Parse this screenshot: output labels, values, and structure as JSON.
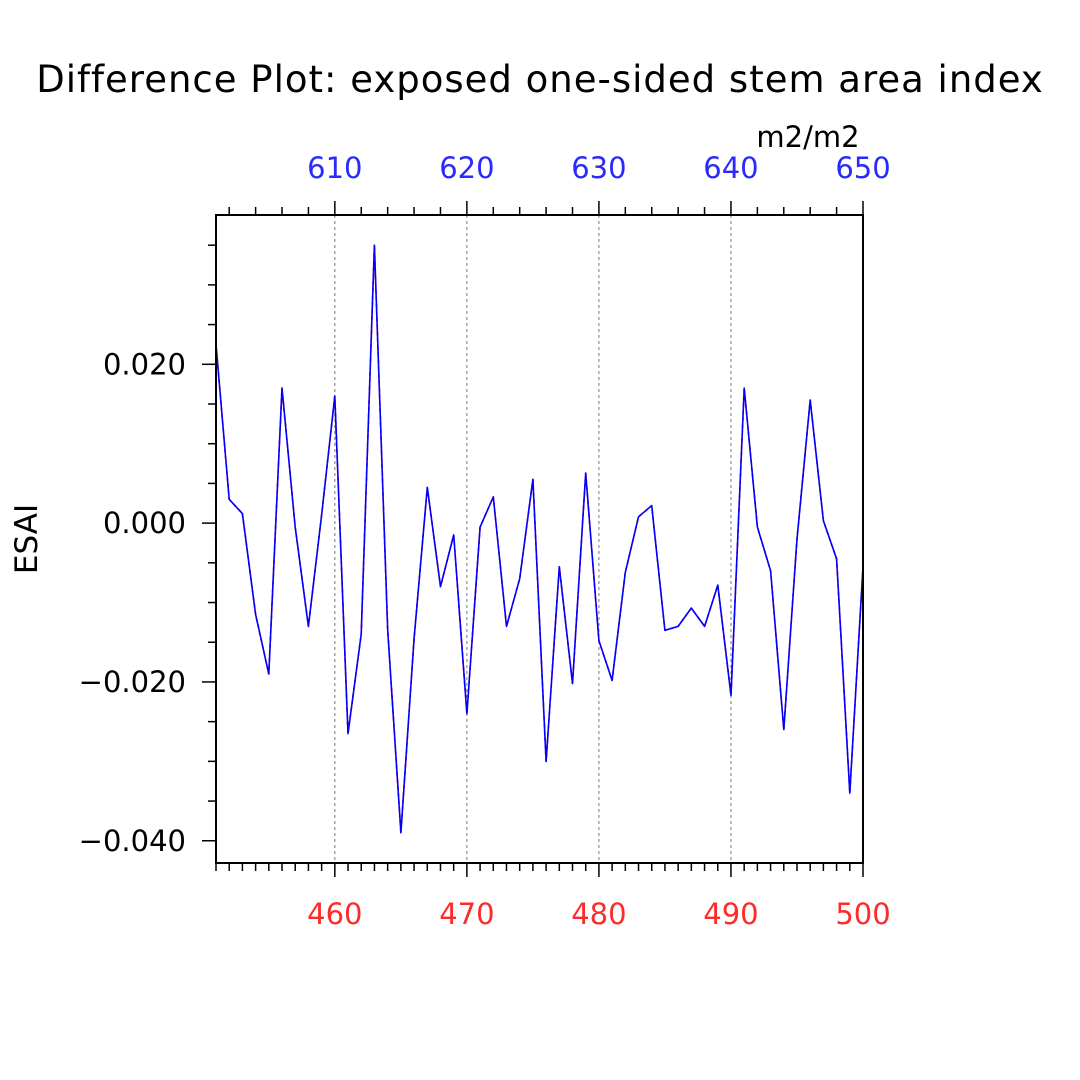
{
  "chart_data": {
    "type": "line",
    "title": "Difference Plot: exposed one-sided stem area index",
    "units": "m2/m2",
    "ylabel": "ESAI",
    "ylim": [
      -0.0428,
      0.0388
    ],
    "yticks": [
      "0.020",
      "0.000",
      "−0.020",
      "−0.040"
    ],
    "ytick_values": [
      0.02,
      0.0,
      -0.02,
      -0.04
    ],
    "y_minor_step": 0.005,
    "x_bottom": {
      "range": [
        451,
        500
      ],
      "ticks": [
        460,
        470,
        480,
        490,
        500
      ],
      "color": "#ff2a2a"
    },
    "x_top": {
      "range": [
        601,
        650
      ],
      "ticks": [
        610,
        620,
        630,
        640,
        650
      ],
      "color": "#2a2aff"
    },
    "grid": "vertical-dashed",
    "x": [
      451,
      452,
      453,
      454,
      455,
      456,
      457,
      458,
      459,
      460,
      461,
      462,
      463,
      464,
      465,
      466,
      467,
      468,
      469,
      470,
      471,
      472,
      473,
      474,
      475,
      476,
      477,
      478,
      479,
      480,
      481,
      482,
      483,
      484,
      485,
      486,
      487,
      488,
      489,
      490,
      491,
      492,
      493,
      494,
      495,
      496,
      497,
      498,
      499,
      500
    ],
    "series": [
      {
        "color": "#ff0000",
        "dash": "dashed",
        "values": [
          0.0225,
          0.003,
          0.0012,
          -0.0115,
          -0.019,
          0.017,
          -0.0005,
          -0.013,
          0.001,
          0.016,
          -0.0265,
          -0.014,
          0.035,
          -0.0135,
          -0.039,
          -0.0145,
          0.0045,
          -0.008,
          -0.0015,
          -0.024,
          -0.0005,
          0.0033,
          -0.013,
          -0.007,
          0.0055,
          -0.03,
          -0.0055,
          -0.0202,
          0.0063,
          -0.0148,
          -0.0198,
          -0.0062,
          0.0008,
          0.0022,
          -0.0135,
          -0.013,
          -0.0107,
          -0.013,
          -0.0078,
          -0.0217,
          0.017,
          -0.0005,
          -0.006,
          -0.026,
          -0.002,
          0.0155,
          0.0003,
          -0.0045,
          -0.034,
          -0.0055
        ]
      },
      {
        "color": "#0000ff",
        "dash": "solid",
        "values": [
          0.0225,
          0.003,
          0.0012,
          -0.0115,
          -0.019,
          0.017,
          -0.0005,
          -0.013,
          0.001,
          0.016,
          -0.0265,
          -0.014,
          0.035,
          -0.0135,
          -0.039,
          -0.0145,
          0.0045,
          -0.008,
          -0.0015,
          -0.024,
          -0.0005,
          0.0033,
          -0.013,
          -0.007,
          0.0055,
          -0.03,
          -0.0055,
          -0.0202,
          0.0063,
          -0.0148,
          -0.0198,
          -0.0062,
          0.0008,
          0.0022,
          -0.0135,
          -0.013,
          -0.0107,
          -0.013,
          -0.0078,
          -0.0217,
          0.017,
          -0.0005,
          -0.006,
          -0.026,
          -0.002,
          0.0155,
          0.0003,
          -0.0045,
          -0.034,
          -0.0055
        ]
      }
    ]
  }
}
